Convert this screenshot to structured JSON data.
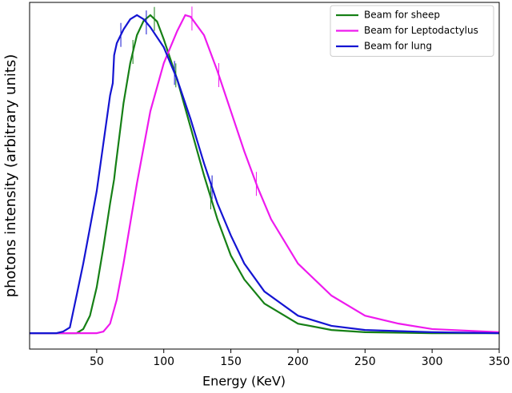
{
  "chart_data": {
    "type": "line",
    "xlabel": "Energy (KeV)",
    "ylabel": "photons intensity (arbitrary units)",
    "xlim": [
      0,
      350
    ],
    "xticks": [
      50,
      100,
      150,
      200,
      250,
      300,
      350
    ],
    "ylim": [
      -0.05,
      1.04
    ],
    "legend": "upper right",
    "series": [
      {
        "name": "Beam for sheep",
        "color": "#168016",
        "x": [
          0,
          35,
          40,
          45,
          50,
          55,
          60,
          63,
          64,
          70,
          75,
          80,
          85,
          90,
          95,
          100,
          110,
          120,
          130,
          140,
          150,
          160,
          175,
          200,
          225,
          250,
          300,
          350
        ],
        "values": [
          0,
          0,
          0.013,
          0.055,
          0.144,
          0.27,
          0.408,
          0.484,
          0.521,
          0.723,
          0.849,
          0.937,
          0.982,
          1.0,
          0.98,
          0.924,
          0.798,
          0.647,
          0.496,
          0.358,
          0.244,
          0.169,
          0.093,
          0.03,
          0.01,
          0.003,
          0,
          0
        ],
        "markers": [
          77,
          93,
          109,
          135
        ]
      },
      {
        "name": "Beam for Leptodactylus",
        "color": "#ee1aee",
        "x": [
          0,
          50,
          55,
          60,
          65,
          70,
          75,
          80,
          90,
          100,
          110,
          116,
          120,
          130,
          140,
          150,
          160,
          170,
          180,
          200,
          225,
          250,
          275,
          300,
          350
        ],
        "values": [
          0,
          0,
          0.005,
          0.03,
          0.106,
          0.219,
          0.345,
          0.471,
          0.698,
          0.849,
          0.95,
          1.0,
          0.995,
          0.937,
          0.824,
          0.698,
          0.572,
          0.458,
          0.358,
          0.219,
          0.118,
          0.055,
          0.03,
          0.013,
          0.003
        ],
        "markers": [
          121,
          141,
          169
        ]
      },
      {
        "name": "Beam for lung",
        "color": "#1414d2",
        "x": [
          0,
          20,
          25,
          30,
          35,
          40,
          45,
          50,
          55,
          60,
          62,
          63,
          65,
          70,
          75,
          80,
          85,
          90,
          100,
          110,
          120,
          130,
          140,
          150,
          160,
          175,
          200,
          225,
          250,
          300,
          350
        ],
        "values": [
          0,
          0,
          0.005,
          0.018,
          0.118,
          0.219,
          0.332,
          0.446,
          0.597,
          0.748,
          0.786,
          0.874,
          0.912,
          0.955,
          0.987,
          1.0,
          0.987,
          0.962,
          0.899,
          0.798,
          0.673,
          0.534,
          0.408,
          0.307,
          0.219,
          0.131,
          0.055,
          0.023,
          0.01,
          0.003,
          0
        ],
        "markers": [
          68,
          87,
          108,
          136
        ]
      }
    ]
  }
}
